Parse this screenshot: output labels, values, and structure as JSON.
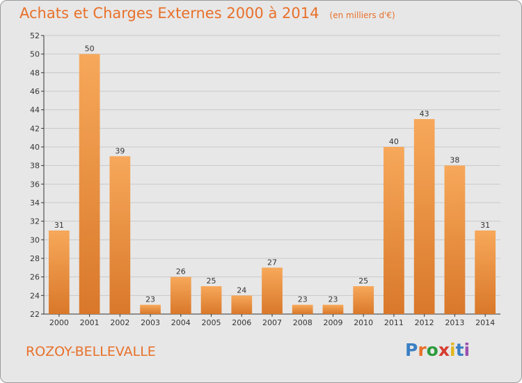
{
  "title": "Achats et Charges Externes 2000 à 2014",
  "subtitle": "(en milliers d'€)",
  "commune": "ROZOY-BELLEVALLE",
  "logo": {
    "text": "Proxiti",
    "letter_colors": [
      "#3a7fc4",
      "#e8702a",
      "#2e9b3e",
      "#d63b2f",
      "#e0b61c",
      "#3a7fc4",
      "#9b4fb0"
    ]
  },
  "colors": {
    "accent": "#e8702a",
    "bar_light": "#f7a85a",
    "bar_dark": "#d9782a",
    "grid": "#c8c8c8",
    "background": "#e7e7e7"
  },
  "chart_data": {
    "type": "bar",
    "title": "Achats et Charges Externes 2000 à 2014",
    "subtitle": "(en milliers d'€)",
    "categories": [
      "2000",
      "2001",
      "2002",
      "2003",
      "2004",
      "2005",
      "2006",
      "2007",
      "2008",
      "2009",
      "2010",
      "2011",
      "2012",
      "2013",
      "2014"
    ],
    "values": [
      31,
      50,
      39,
      23,
      26,
      25,
      24,
      27,
      23,
      23,
      25,
      40,
      43,
      38,
      31
    ],
    "xlabel": "",
    "ylabel": "",
    "ylim": [
      22,
      52
    ],
    "yticks": [
      22,
      24,
      26,
      28,
      30,
      32,
      34,
      36,
      38,
      40,
      42,
      44,
      46,
      48,
      50,
      52
    ],
    "grid": true,
    "legend": "none"
  }
}
